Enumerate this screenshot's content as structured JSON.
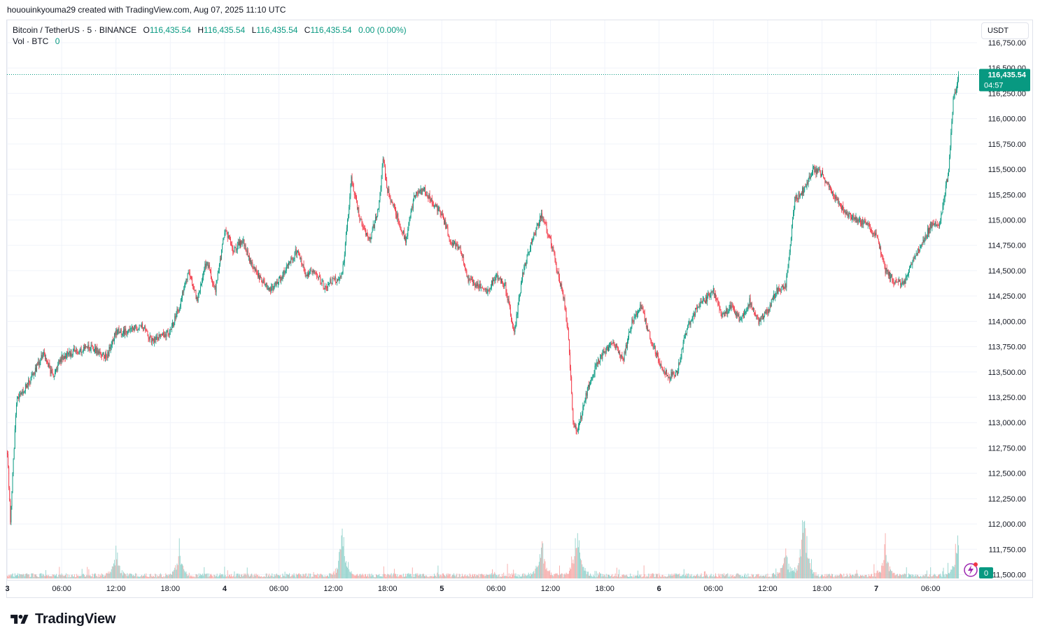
{
  "caption": "hououinkyouma29 created with TradingView.com, Aug 07, 2025 11:10 UTC",
  "legend": {
    "symbol": "Bitcoin / TetherUS · 5 · BINANCE",
    "o_label": "O",
    "o_value": "116,435.54",
    "h_label": "H",
    "h_value": "116,435.54",
    "l_label": "L",
    "l_value": "116,435.54",
    "c_label": "C",
    "c_value": "116,435.54",
    "change": "0.00 (0.00%)",
    "vol_label": "Vol · BTC",
    "vol_value": "0"
  },
  "currency_button": "USDT",
  "last_price_label": "116,435.54",
  "countdown": "04:57",
  "volume_badge": "0",
  "brand": "TradingView",
  "colors": {
    "up": "#089981",
    "down": "#f23645",
    "up_vol": "#92d2cc",
    "down_vol": "#f7a9a7",
    "grid": "#f0f3fa",
    "text": "#131722"
  },
  "chart_data": {
    "type": "candlestick",
    "interval_minutes": 5,
    "ylim": [
      111500,
      116850
    ],
    "y_ticks": [
      "116,750.00",
      "116,500.00",
      "116,250.00",
      "116,000.00",
      "115,750.00",
      "115,500.00",
      "115,250.00",
      "115,000.00",
      "114,750.00",
      "114,500.00",
      "114,250.00",
      "114,000.00",
      "113,750.00",
      "113,500.00",
      "113,250.00",
      "113,000.00",
      "112,750.00",
      "112,500.00",
      "112,250.00",
      "112,000.00",
      "111,750.00",
      "111,500.00"
    ],
    "x_ticks": [
      "3",
      "06:00",
      "12:00",
      "18:00",
      "4",
      "06:00",
      "12:00",
      "18:00",
      "5",
      "06:00",
      "12:00",
      "18:00",
      "6",
      "06:00",
      "12:00",
      "18:00",
      "7",
      "06:00"
    ],
    "price_path": [
      {
        "t": "Aug 3 00:00",
        "price": 112700
      },
      {
        "t": "Aug 3 00:20",
        "price": 112050
      },
      {
        "t": "Aug 3 01:00",
        "price": 113200
      },
      {
        "t": "Aug 3 03:00",
        "price": 113500
      },
      {
        "t": "Aug 3 04:00",
        "price": 113700
      },
      {
        "t": "Aug 3 05:00",
        "price": 113450
      },
      {
        "t": "Aug 3 06:00",
        "price": 113650
      },
      {
        "t": "Aug 3 09:00",
        "price": 113750
      },
      {
        "t": "Aug 3 11:00",
        "price": 113650
      },
      {
        "t": "Aug 3 12:00",
        "price": 113900
      },
      {
        "t": "Aug 3 13:00",
        "price": 113900
      },
      {
        "t": "Aug 3 15:00",
        "price": 113950
      },
      {
        "t": "Aug 3 16:00",
        "price": 113800
      },
      {
        "t": "Aug 3 18:00",
        "price": 113900
      },
      {
        "t": "Aug 3 19:00",
        "price": 114150
      },
      {
        "t": "Aug 3 20:00",
        "price": 114500
      },
      {
        "t": "Aug 3 21:00",
        "price": 114200
      },
      {
        "t": "Aug 3 22:00",
        "price": 114600
      },
      {
        "t": "Aug 3 23:00",
        "price": 114300
      },
      {
        "t": "Aug 4 00:00",
        "price": 114900
      },
      {
        "t": "Aug 4 01:00",
        "price": 114700
      },
      {
        "t": "Aug 4 02:00",
        "price": 114800
      },
      {
        "t": "Aug 4 03:00",
        "price": 114550
      },
      {
        "t": "Aug 4 05:00",
        "price": 114300
      },
      {
        "t": "Aug 4 06:00",
        "price": 114400
      },
      {
        "t": "Aug 4 08:00",
        "price": 114700
      },
      {
        "t": "Aug 4 09:00",
        "price": 114450
      },
      {
        "t": "Aug 4 10:00",
        "price": 114500
      },
      {
        "t": "Aug 4 11:00",
        "price": 114350
      },
      {
        "t": "Aug 4 13:00",
        "price": 114450
      },
      {
        "t": "Aug 4 14:00",
        "price": 115400
      },
      {
        "t": "Aug 4 15:00",
        "price": 115000
      },
      {
        "t": "Aug 4 16:00",
        "price": 114800
      },
      {
        "t": "Aug 4 17:00",
        "price": 115100
      },
      {
        "t": "Aug 4 17:30",
        "price": 115600
      },
      {
        "t": "Aug 4 18:00",
        "price": 115300
      },
      {
        "t": "Aug 4 20:00",
        "price": 114800
      },
      {
        "t": "Aug 4 21:00",
        "price": 115250
      },
      {
        "t": "Aug 4 22:00",
        "price": 115300
      },
      {
        "t": "Aug 5 00:00",
        "price": 115050
      },
      {
        "t": "Aug 5 01:00",
        "price": 114800
      },
      {
        "t": "Aug 5 02:00",
        "price": 114700
      },
      {
        "t": "Aug 5 03:00",
        "price": 114400
      },
      {
        "t": "Aug 5 05:00",
        "price": 114300
      },
      {
        "t": "Aug 5 06:00",
        "price": 114450
      },
      {
        "t": "Aug 5 07:00",
        "price": 114350
      },
      {
        "t": "Aug 5 08:00",
        "price": 113900
      },
      {
        "t": "Aug 5 09:00",
        "price": 114500
      },
      {
        "t": "Aug 5 10:00",
        "price": 114800
      },
      {
        "t": "Aug 5 11:00",
        "price": 115050
      },
      {
        "t": "Aug 5 12:00",
        "price": 114800
      },
      {
        "t": "Aug 5 13:00",
        "price": 114400
      },
      {
        "t": "Aug 5 13:30",
        "price": 114200
      },
      {
        "t": "Aug 5 14:00",
        "price": 113850
      },
      {
        "t": "Aug 5 14:30",
        "price": 113000
      },
      {
        "t": "Aug 5 15:00",
        "price": 112900
      },
      {
        "t": "Aug 5 15:30",
        "price": 113100
      },
      {
        "t": "Aug 5 16:00",
        "price": 113300
      },
      {
        "t": "Aug 5 17:00",
        "price": 113550
      },
      {
        "t": "Aug 5 18:00",
        "price": 113700
      },
      {
        "t": "Aug 5 19:00",
        "price": 113800
      },
      {
        "t": "Aug 5 20:00",
        "price": 113600
      },
      {
        "t": "Aug 5 21:00",
        "price": 114000
      },
      {
        "t": "Aug 5 22:00",
        "price": 114150
      },
      {
        "t": "Aug 5 23:00",
        "price": 113850
      },
      {
        "t": "Aug 6 00:00",
        "price": 113600
      },
      {
        "t": "Aug 6 01:00",
        "price": 113450
      },
      {
        "t": "Aug 6 02:00",
        "price": 113500
      },
      {
        "t": "Aug 6 03:00",
        "price": 113900
      },
      {
        "t": "Aug 6 04:00",
        "price": 114100
      },
      {
        "t": "Aug 6 05:00",
        "price": 114200
      },
      {
        "t": "Aug 6 06:00",
        "price": 114300
      },
      {
        "t": "Aug 6 07:00",
        "price": 114050
      },
      {
        "t": "Aug 6 08:00",
        "price": 114150
      },
      {
        "t": "Aug 6 09:00",
        "price": 114000
      },
      {
        "t": "Aug 6 10:00",
        "price": 114200
      },
      {
        "t": "Aug 6 11:00",
        "price": 114000
      },
      {
        "t": "Aug 6 12:00",
        "price": 114100
      },
      {
        "t": "Aug 6 13:00",
        "price": 114300
      },
      {
        "t": "Aug 6 14:00",
        "price": 114350
      },
      {
        "t": "Aug 6 15:00",
        "price": 115200
      },
      {
        "t": "Aug 6 16:00",
        "price": 115300
      },
      {
        "t": "Aug 6 17:00",
        "price": 115500
      },
      {
        "t": "Aug 6 18:00",
        "price": 115450
      },
      {
        "t": "Aug 6 19:00",
        "price": 115300
      },
      {
        "t": "Aug 6 20:00",
        "price": 115150
      },
      {
        "t": "Aug 6 21:00",
        "price": 115050
      },
      {
        "t": "Aug 6 22:00",
        "price": 115000
      },
      {
        "t": "Aug 6 23:00",
        "price": 114950
      },
      {
        "t": "Aug 7 00:00",
        "price": 114850
      },
      {
        "t": "Aug 7 01:00",
        "price": 114500
      },
      {
        "t": "Aug 7 02:00",
        "price": 114400
      },
      {
        "t": "Aug 7 03:00",
        "price": 114350
      },
      {
        "t": "Aug 7 04:00",
        "price": 114600
      },
      {
        "t": "Aug 7 05:00",
        "price": 114750
      },
      {
        "t": "Aug 7 06:00",
        "price": 114950
      },
      {
        "t": "Aug 7 07:00",
        "price": 114950
      },
      {
        "t": "Aug 7 08:00",
        "price": 115500
      },
      {
        "t": "Aug 7 08:30",
        "price": 116200
      },
      {
        "t": "Aug 7 09:00",
        "price": 116350
      },
      {
        "t": "Aug 7 09:05",
        "price": 116435.54
      }
    ],
    "volume_spikes": [
      {
        "t": "Aug 3 12:00",
        "btc": 100
      },
      {
        "t": "Aug 3 19:00",
        "btc": 120
      },
      {
        "t": "Aug 4 13:00",
        "btc": 175
      },
      {
        "t": "Aug 5 11:00",
        "btc": 160
      },
      {
        "t": "Aug 5 15:00",
        "btc": 230
      },
      {
        "t": "Aug 6 14:00",
        "btc": 95
      },
      {
        "t": "Aug 6 16:00",
        "btc": 300
      },
      {
        "t": "Aug 7 01:00",
        "btc": 120
      },
      {
        "t": "Aug 7 09:00",
        "btc": 185
      }
    ],
    "last_price": 116435.54
  }
}
